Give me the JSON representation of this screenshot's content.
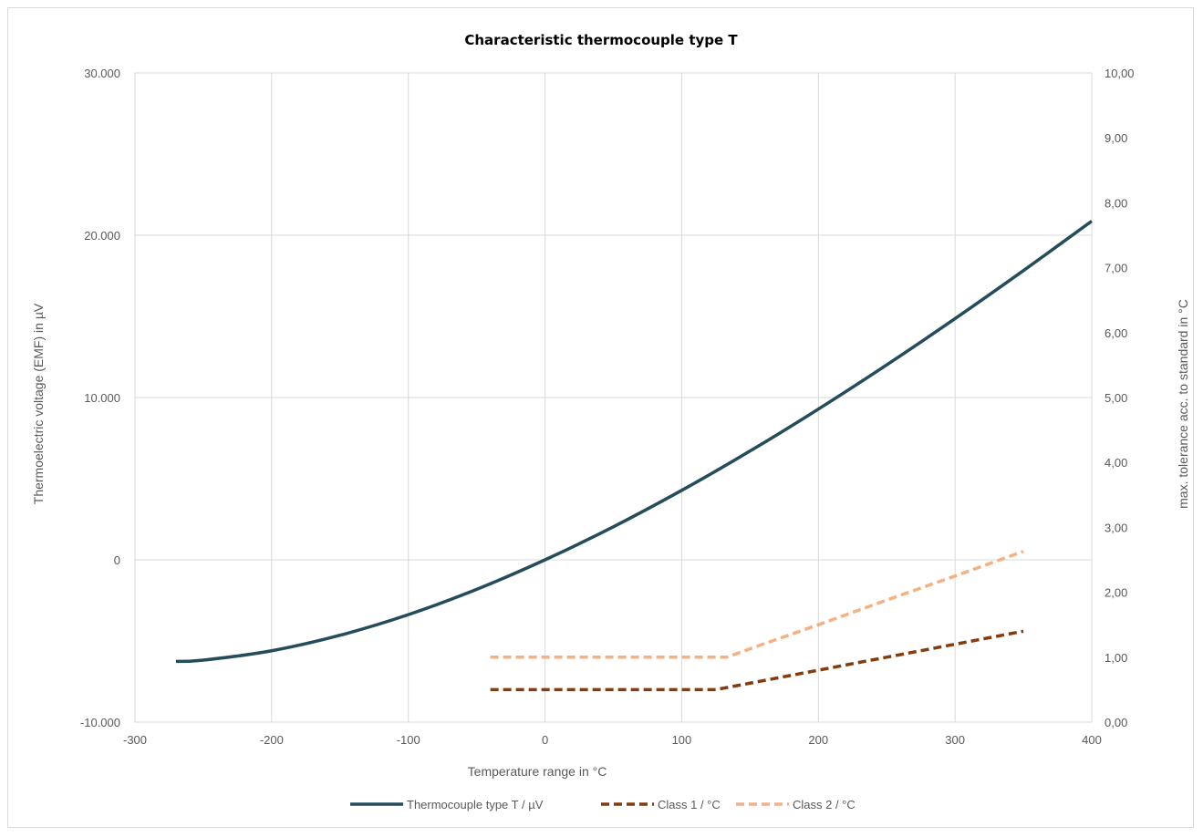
{
  "chart_data": {
    "type": "line",
    "title": "Characteristic thermocouple type T",
    "xlabel": "Temperature range in °C",
    "ylabel": "Thermoelectric voltage (EMF) in µV",
    "y2label": "max. tolerance acc. to standard in °C",
    "xlim": [
      -300,
      400
    ],
    "ylim": [
      -10000,
      30000
    ],
    "y2lim": [
      0,
      10
    ],
    "x_ticks": [
      -300,
      -200,
      -100,
      0,
      100,
      200,
      300,
      400
    ],
    "x_tick_labels": [
      "-300",
      "-200",
      "-100",
      "0",
      "100",
      "200",
      "300",
      "400"
    ],
    "y_ticks": [
      -10000,
      0,
      10000,
      20000,
      30000
    ],
    "y_tick_labels": [
      "-10.000",
      "0",
      "10.000",
      "20.000",
      "30.000"
    ],
    "y2_ticks": [
      0,
      1,
      2,
      3,
      4,
      5,
      6,
      7,
      8,
      9,
      10
    ],
    "y2_tick_labels": [
      "0,00",
      "1,00",
      "2,00",
      "3,00",
      "4,00",
      "5,00",
      "6,00",
      "7,00",
      "8,00",
      "9,00",
      "10,00"
    ],
    "grid": true,
    "legend_position": "bottom",
    "series": [
      {
        "name": "Thermocouple type T / µV",
        "axis": "left",
        "color": "#244c5a",
        "style": "solid",
        "x": [
          -270,
          -250,
          -200,
          -150,
          -100,
          -50,
          0,
          50,
          100,
          150,
          200,
          250,
          300,
          350,
          400
        ],
        "y": [
          -6258,
          -6180,
          -5603,
          -4648,
          -3379,
          -1819,
          0,
          2036,
          4279,
          6704,
          9288,
          12013,
          14862,
          17819,
          20872
        ]
      },
      {
        "name": "Class 1 / °C",
        "axis": "right",
        "color": "#843c0c",
        "style": "dashed",
        "x": [
          -40,
          0,
          50,
          100,
          125,
          150,
          200,
          250,
          300,
          350
        ],
        "y": [
          0.5,
          0.5,
          0.5,
          0.5,
          0.5,
          0.6,
          0.8,
          1.0,
          1.2,
          1.4
        ]
      },
      {
        "name": "Class 2 / °C",
        "axis": "right",
        "color": "#f4b183",
        "style": "dashed",
        "x": [
          -40,
          0,
          50,
          100,
          133,
          150,
          200,
          250,
          300,
          350
        ],
        "y": [
          1.0,
          1.0,
          1.0,
          1.0,
          1.0,
          1.13,
          1.5,
          1.88,
          2.25,
          2.63
        ]
      }
    ]
  }
}
